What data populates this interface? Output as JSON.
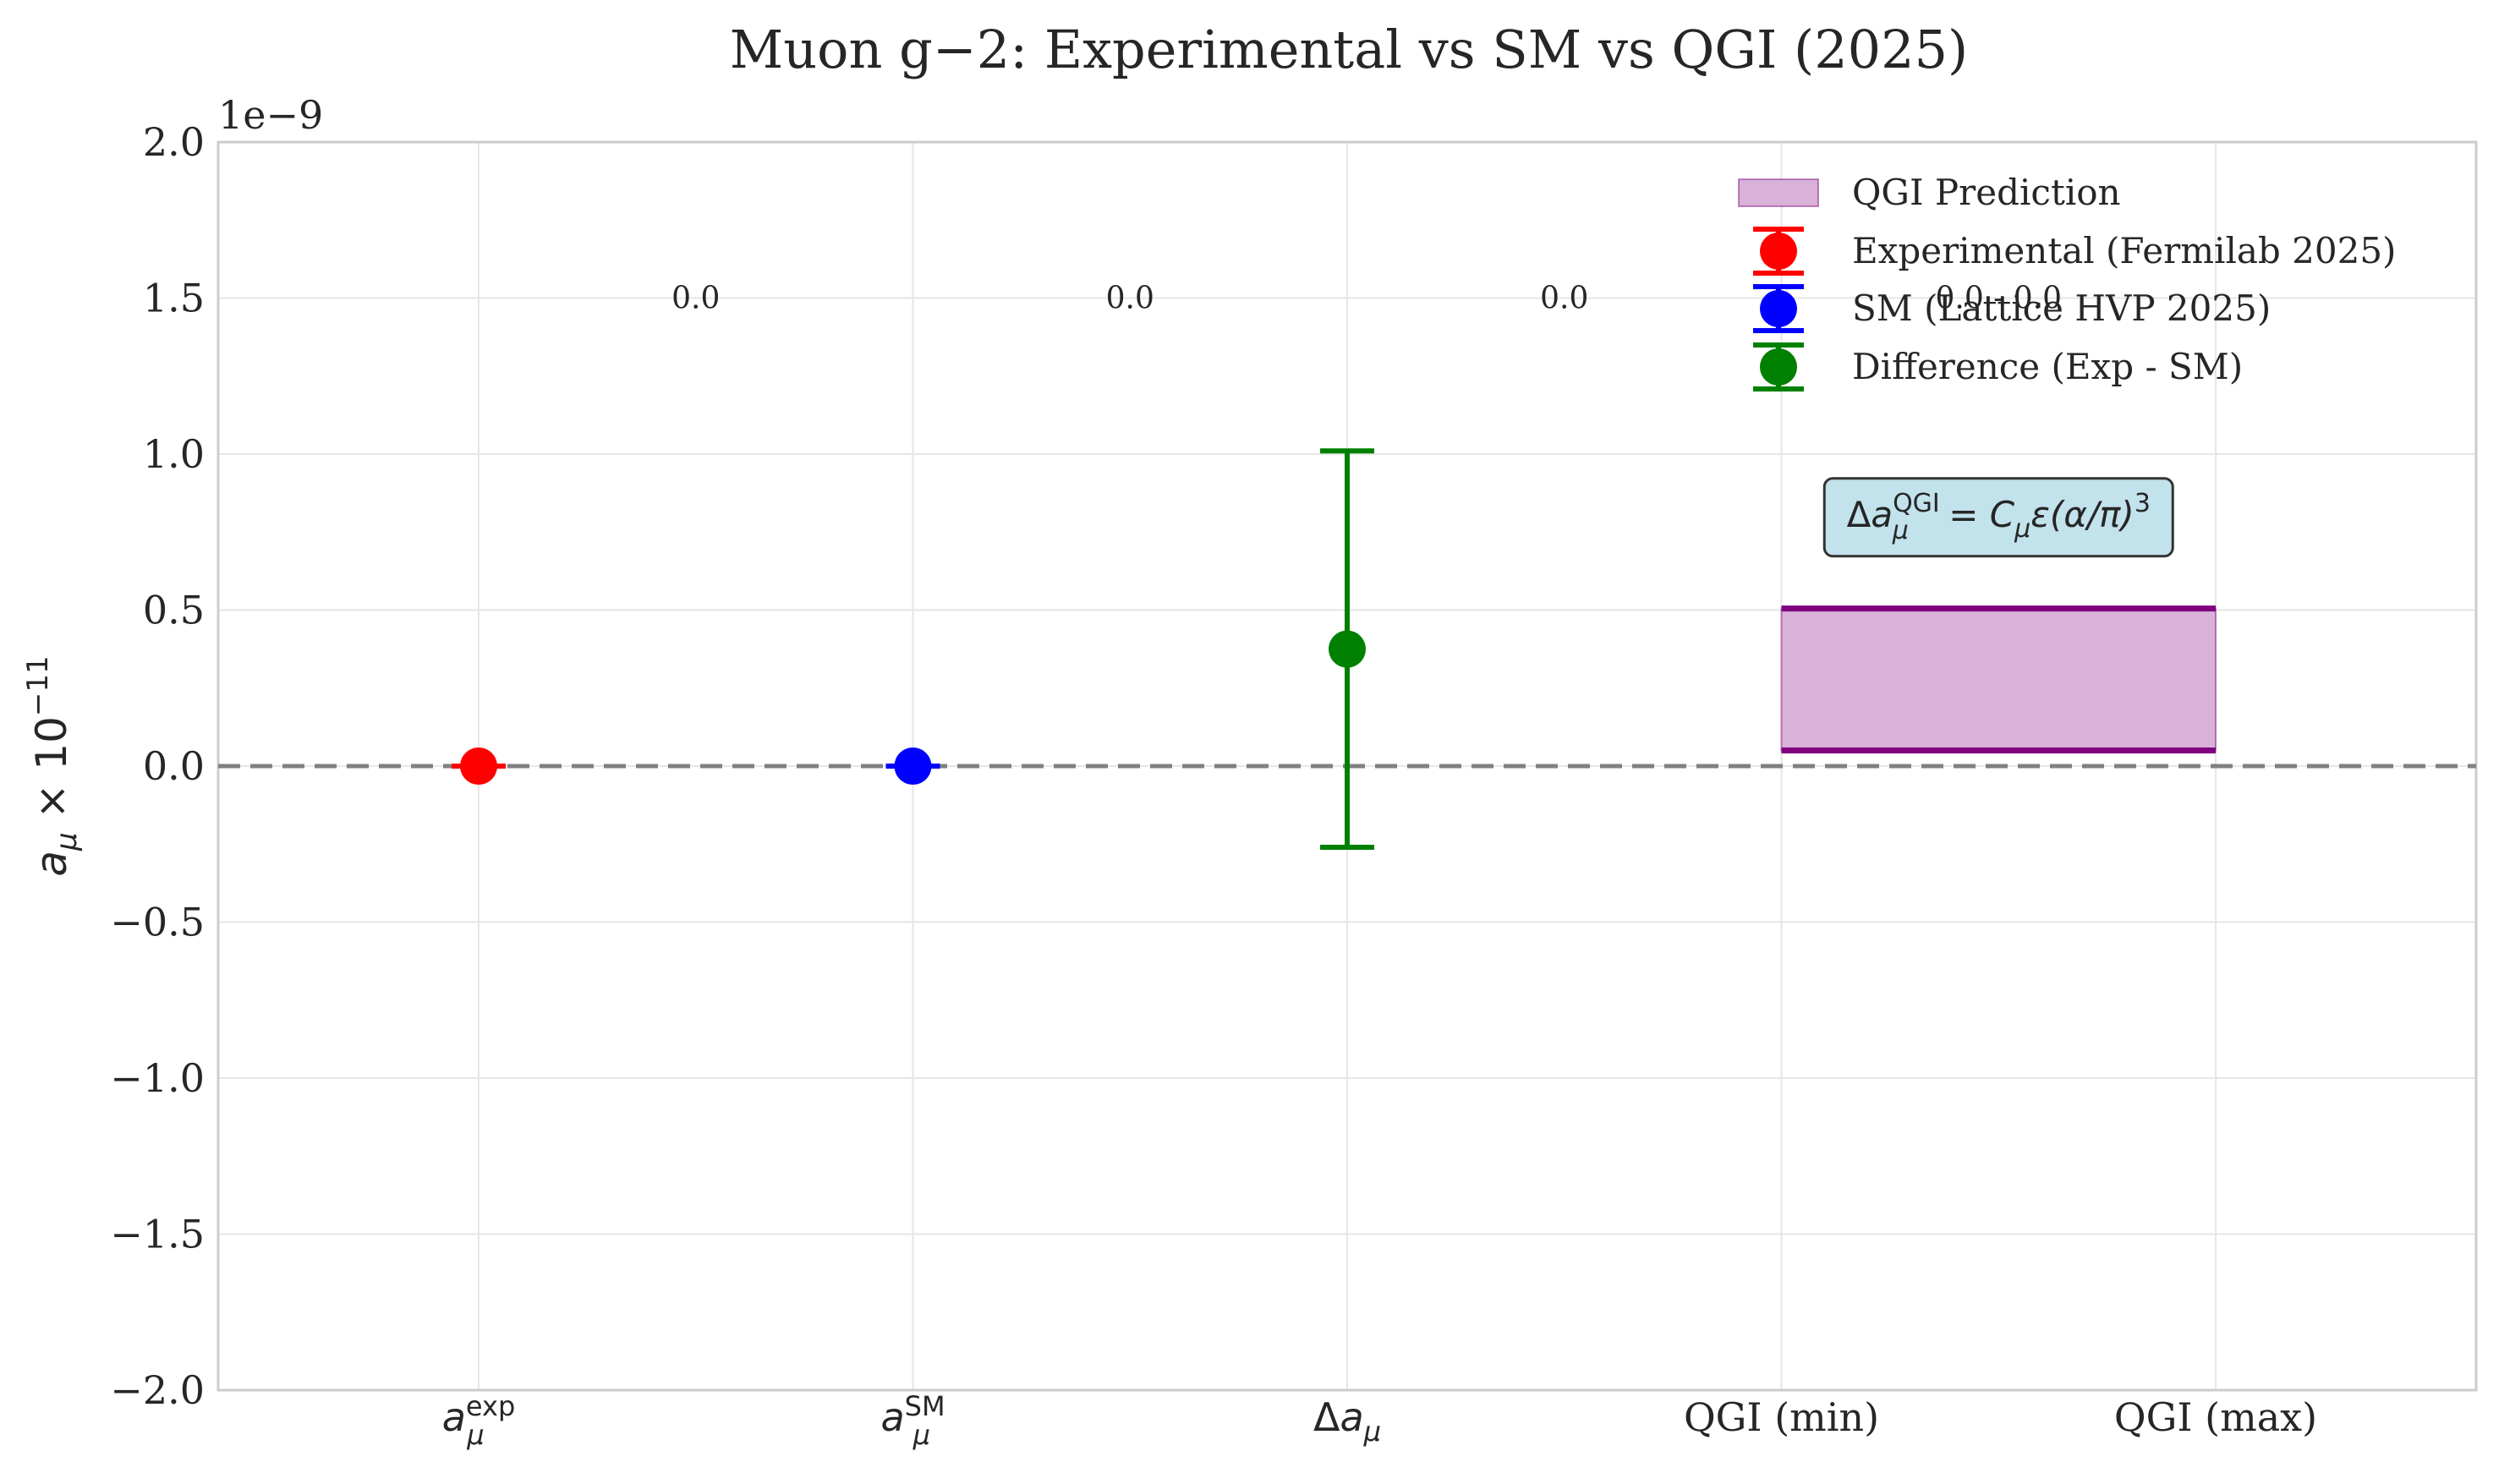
{
  "chart_data": {
    "type": "scatter",
    "title": "Muon g−2: Experimental vs SM vs QGI (2025)",
    "ylabel": "a_μ × 10⁻¹¹",
    "y_offset_label": "1e−9",
    "ylim": [
      -2.0,
      2.0
    ],
    "yticks": [
      "2.0",
      "1.5",
      "1.0",
      "0.5",
      "0.0",
      "−0.5",
      "−1.0",
      "−1.5",
      "−2.0"
    ],
    "ytick_values": [
      2.0,
      1.5,
      1.0,
      0.5,
      0.0,
      -0.5,
      -1.0,
      -1.5,
      -2.0
    ],
    "categories": [
      {
        "main": "a",
        "sub": "μ",
        "sup": "exp",
        "math": true
      },
      {
        "main": "a",
        "sub": "μ",
        "sup": "SM",
        "math": true
      },
      {
        "main": "Δa",
        "sub": "μ",
        "sup": "",
        "math": true
      },
      {
        "main": "QGI (min)",
        "sub": "",
        "sup": "",
        "math": false
      },
      {
        "main": "QGI (max)",
        "sub": "",
        "sup": "",
        "math": false
      }
    ],
    "grid": true,
    "legend_position": "top-right",
    "series": [
      {
        "name": "Experimental (Fermilab 2025)",
        "color": "#ff0000",
        "x_index": 0,
        "y": 0.0,
        "yerr": 0.0
      },
      {
        "name": "SM (Lattice HVP 2025)",
        "color": "#0000ff",
        "x_index": 1,
        "y": 0.0,
        "yerr": 0.0
      },
      {
        "name": "Difference (Exp - SM)",
        "color": "#008000",
        "x_index": 2,
        "y": 0.375,
        "yerr": 0.635
      }
    ],
    "band": {
      "name": "QGI Prediction",
      "fill": "#d8b2d8",
      "edge": "#800080",
      "x_from_index": 3,
      "x_to_index": 4,
      "y_min": 0.05,
      "y_max": 0.505
    },
    "reference_line": {
      "y": 0.0,
      "style": "dashed",
      "color": "#808080"
    },
    "value_labels": [
      {
        "text": "0.0",
        "x_index": 0.5,
        "y": 1.5
      },
      {
        "text": "0.0",
        "x_index": 1.5,
        "y": 1.5
      },
      {
        "text": "0.0",
        "x_index": 2.5,
        "y": 1.5
      },
      {
        "text": "0.0 - 0.0",
        "x_index": 3.5,
        "y": 1.5
      }
    ],
    "annotation": {
      "text_parts": [
        "Δa",
        "μ",
        "QGI",
        " = C",
        "μ",
        "ε(α/π)",
        "3"
      ],
      "x_index": 3.5,
      "y": 0.8,
      "box_fill": "#add8e6",
      "box_edge": "#333333"
    }
  }
}
